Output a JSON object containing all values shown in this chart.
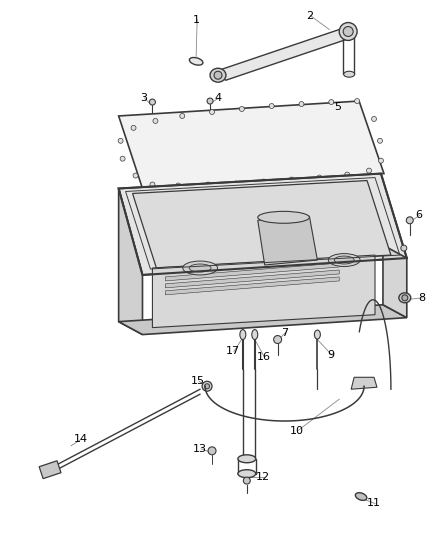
{
  "background_color": "#ffffff",
  "line_color": "#3a3a3a",
  "label_color": "#000000",
  "label_fontsize": 8.0,
  "leader_line_color": "#888888",
  "figsize": [
    4.38,
    5.33
  ],
  "dpi": 100
}
